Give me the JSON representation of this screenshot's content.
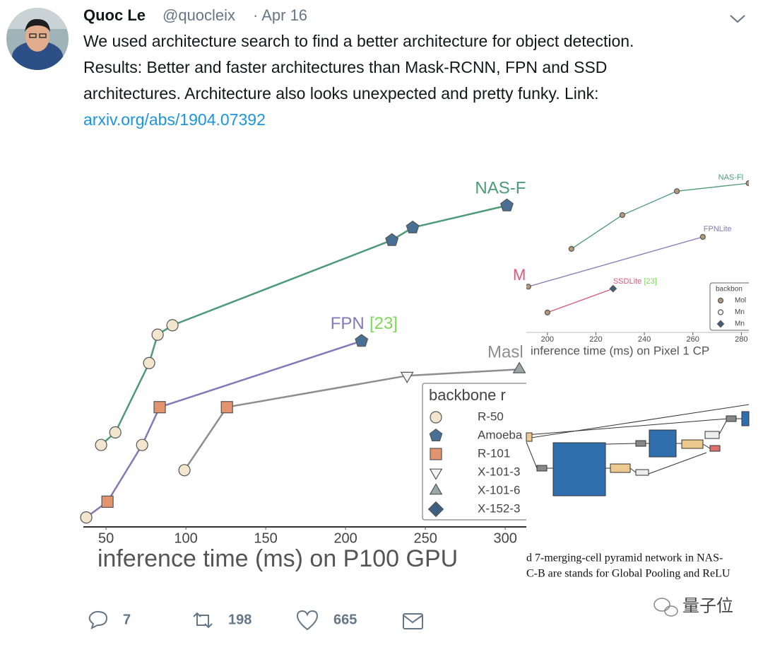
{
  "tweet": {
    "name": "Quoc Le",
    "handle": "@quocleix",
    "date": "· Apr 16",
    "text_lines": [
      "We used architecture search to find a better architecture for object detection.",
      "Results: Better and faster architectures than Mask-RCNN, FPN and SSD",
      "architectures. Architecture also looks unexpected and pretty funky. Link:"
    ],
    "link": "arxiv.org/abs/1904.07392",
    "replies": 7,
    "retweets": 198,
    "likes": 665
  },
  "chart_data": [
    {
      "type": "line",
      "xlabel": "inference time (ms) on P100 GPU",
      "xlim": [
        35.8,
        313.2
      ],
      "ylim": [
        36,
        47
      ],
      "xticks": [
        50,
        100,
        150,
        200,
        250,
        300
      ],
      "series": [
        {
          "name": "NAS-F",
          "color": "#4c9a78",
          "x": [
            46.9,
            55.8,
            77.0,
            82.3,
            91.6,
            229,
            242,
            301
          ],
          "values": [
            38.6,
            39.0,
            41.2,
            42.1,
            42.4,
            45.1,
            45.5,
            46.2
          ],
          "markers": [
            "circle",
            "circle",
            "circle",
            "circle",
            "circle",
            "pentagon",
            "pentagon",
            "pentagon"
          ]
        },
        {
          "name": "FPN",
          "ref": "[23]",
          "color": "#8379b8",
          "x": [
            37.6,
            50.9,
            72.6,
            83.6,
            210
          ],
          "values": [
            36.3,
            36.8,
            38.6,
            39.8,
            41.9
          ],
          "markers": [
            "circle",
            "square",
            "circle",
            "square",
            "pentagon"
          ]
        },
        {
          "name": "Masl",
          "color": "#8e8e8e",
          "x": [
            99.1,
            125.7,
            238.5,
            308.8
          ],
          "values": [
            37.8,
            39.8,
            40.8,
            41.0
          ],
          "markers": [
            "circle",
            "square",
            "triangle-down",
            "triangle-up"
          ]
        }
      ],
      "legend": {
        "title": "backbone r",
        "entries": [
          {
            "name": "R-50",
            "marker": "circle",
            "color": "#f2e6cf"
          },
          {
            "name": "Amoeba",
            "marker": "pentagon",
            "color": "#4a6f95"
          },
          {
            "name": "R-101",
            "marker": "square",
            "color": "#e3946e"
          },
          {
            "name": "X-101-3",
            "marker": "triangle-down",
            "color": "#f4f4f4"
          },
          {
            "name": "X-101-6",
            "marker": "triangle-up",
            "color": "#9aa7a8"
          },
          {
            "name": "X-152-3",
            "marker": "diamond",
            "color": "#3f5f82"
          }
        ]
      }
    },
    {
      "type": "line",
      "xlabel": "inference time (ms) on Pixel 1 CP",
      "xlim": [
        191.3,
        283.1
      ],
      "ylim": [
        20,
        28
      ],
      "xticks": [
        200,
        220,
        240,
        260,
        280
      ],
      "series": [
        {
          "name": "NAS-Fl",
          "color": "#4c9a78",
          "x": [
            209.9,
            230.9,
            253.4,
            283
          ],
          "values": [
            24.2,
            25.9,
            27.1,
            27.5
          ],
          "markers": [
            "circle",
            "circle",
            "circle",
            "circle"
          ]
        },
        {
          "name": "FPNLite",
          "color": "#8379b8",
          "x": [
            192.1,
            264.1
          ],
          "values": [
            22.3,
            24.8
          ],
          "markers": [
            "circle",
            "circle"
          ]
        },
        {
          "name": "SSDLite",
          "ref": "[23]",
          "color": "#d8587a",
          "x": [
            200,
            227.1
          ],
          "values": [
            21.0,
            22.2
          ],
          "markers": [
            "circle",
            "diamond"
          ]
        }
      ],
      "annotations": [
        {
          "text": "M",
          "color": "#d8587a"
        }
      ],
      "legend": {
        "title": "backbon",
        "entries": [
          {
            "name": "Mol",
            "marker": "circle",
            "color": "#b49a7a"
          },
          {
            "name": "Mn",
            "marker": "circle",
            "color": "#f4f4f4"
          },
          {
            "name": "Mn",
            "marker": "diamond",
            "color": "#3f5f82"
          }
        ]
      }
    }
  ],
  "figure_caption": [
    "d 7-merging-cell pyramid network in NAS-",
    "C-B are stands for Global Pooling and ReLU"
  ],
  "watermark": "量子位"
}
